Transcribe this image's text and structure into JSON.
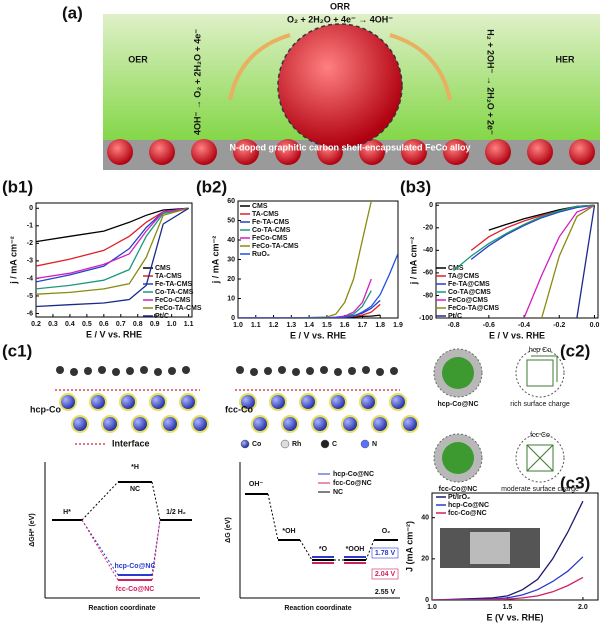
{
  "panel_a": {
    "label": "(a)",
    "orr": "ORR",
    "orr_eq": "O₂ + 2H₂O + 4e⁻ → 4OH⁻",
    "oer": "OER",
    "oer_eq": "4OH⁻ → O₂ + 2H₂O + 4e⁻",
    "her": "HER",
    "her_eq": "H₂ + 2OH⁻ → 2H₂O + 2e⁻",
    "caption": "N-doped graphitic carbon shell-encapsulated FeCo alloy"
  },
  "panel_c1": {
    "label": "(c1)",
    "hcp": "hcp-Co",
    "fcc": "fcc-Co",
    "interface": "Interface",
    "atoms": [
      "Co",
      "Rh",
      "C",
      "N"
    ],
    "her_diagram": {
      "ylabel": "ΔGH* (eV)",
      "start": "H*",
      "intermediate": "*H",
      "nc": "NC",
      "end": "1/2 H₂",
      "hcp": "hcp-Co@NC",
      "fcc": "fcc-Co@NC",
      "xlabel": "Reaction coordinate"
    },
    "oer_diagram": {
      "ylabel": "ΔG (eV)",
      "steps": [
        "OH⁻",
        "*OH",
        "*O",
        "*OOH",
        "O₂"
      ],
      "legend": [
        "hcp-Co@NC",
        "fcc-Co@NC",
        "NC"
      ],
      "potentials": [
        "1.78 V",
        "2.04 V",
        "2.55 V"
      ],
      "xlabel": "Reaction coordinate"
    }
  },
  "panel_c2": {
    "label": "(c2)",
    "hcp": "hcp-Co@NC",
    "hcp_lattice": "hcp Co",
    "hcp_note": "rich surface charge",
    "fcc": "fcc-Co@NC",
    "fcc_lattice": "fcc Co",
    "fcc_note": "moderate surface charge"
  },
  "chart_data": [
    {
      "type": "line",
      "label": "(b1)",
      "xlabel": "E / V vs. RHE",
      "ylabel": "j / mA cm⁻²",
      "x": [
        0.2,
        0.4,
        0.6,
        0.75,
        0.85,
        0.95,
        1.1
      ],
      "xlim": [
        0.2,
        1.12
      ],
      "xticks": [
        0.2,
        0.3,
        0.4,
        0.5,
        0.6,
        0.7,
        0.8,
        0.9,
        {
          "value": 1.0,
          "label": "1.0"
        },
        1.1
      ],
      "ylim": [
        -6.2,
        0.3
      ],
      "yticks": [
        0,
        -1,
        -2,
        -3,
        -4,
        -5,
        -6
      ],
      "series": [
        {
          "name": "CMS",
          "color": "#000000",
          "values": [
            -1.9,
            -1.6,
            -1.3,
            -0.8,
            -0.4,
            -0.1,
            0
          ]
        },
        {
          "name": "TA-CMS",
          "color": "#e0202a",
          "values": [
            -3.3,
            -2.9,
            -2.4,
            -1.6,
            -0.8,
            -0.2,
            0
          ]
        },
        {
          "name": "Fe-TA-CMS",
          "color": "#2740c8",
          "values": [
            -4.2,
            -3.8,
            -3.3,
            -2.3,
            -1.1,
            -0.2,
            0
          ]
        },
        {
          "name": "Co-TA-CMS",
          "color": "#1a9a7a",
          "values": [
            -4.6,
            -4.4,
            -4.1,
            -3.5,
            -1.6,
            -0.3,
            0
          ]
        },
        {
          "name": "FeCo-CMS",
          "color": "#d020c0",
          "values": [
            -4.0,
            -3.7,
            -3.2,
            -2.6,
            -1.3,
            -0.2,
            0
          ]
        },
        {
          "name": "FeCo-TA-CMS",
          "color": "#8a8a10",
          "values": [
            -4.9,
            -4.8,
            -4.6,
            -4.3,
            -2.8,
            -0.4,
            0
          ]
        },
        {
          "name": "Pt/C",
          "color": "#1a2a8a",
          "values": [
            -5.6,
            -5.5,
            -5.4,
            -5.2,
            -4.4,
            -0.9,
            0
          ]
        }
      ]
    },
    {
      "type": "line",
      "label": "(b2)",
      "xlabel": "E / V vs. RHE",
      "ylabel": "j / mA cm⁻²",
      "x": [
        1.0,
        1.3,
        1.5,
        1.55,
        1.6,
        1.65,
        1.7,
        1.75,
        1.8,
        1.85,
        1.9
      ],
      "xlim": [
        1.0,
        1.9
      ],
      "xticks": [
        {
          "value": 1.0,
          "label": "1.0"
        },
        1.1,
        1.2,
        1.3,
        1.4,
        1.5,
        1.6,
        1.7,
        1.8,
        1.9
      ],
      "ylim": [
        0,
        60
      ],
      "yticks": [
        0,
        10,
        20,
        30,
        40,
        50,
        60
      ],
      "series": [
        {
          "name": "CMS",
          "color": "#000000",
          "values": [
            0,
            0,
            0.1,
            0.2,
            0.3,
            0.5,
            0.8,
            1,
            1.5,
            null,
            null
          ]
        },
        {
          "name": "TA-CMS",
          "color": "#e0202a",
          "values": [
            0,
            0,
            0.1,
            0.2,
            0.4,
            0.8,
            1.5,
            3,
            7,
            null,
            null
          ]
        },
        {
          "name": "Fe-TA-CMS",
          "color": "#2740c8",
          "values": [
            0,
            0,
            0.1,
            0.3,
            0.6,
            1.2,
            2.5,
            5,
            9,
            null,
            null
          ]
        },
        {
          "name": "Co-TA-CMS",
          "color": "#1a9a7a",
          "values": [
            0,
            0,
            0.1,
            0.3,
            0.8,
            2,
            6,
            14,
            null,
            null,
            null
          ]
        },
        {
          "name": "FeCo-CMS",
          "color": "#d020c0",
          "values": [
            0,
            0,
            0.1,
            0.4,
            1,
            3,
            8,
            20,
            null,
            null,
            null
          ]
        },
        {
          "name": "FeCo-TA-CMS",
          "color": "#8a8a10",
          "values": [
            0,
            0,
            0.5,
            2,
            8,
            20,
            40,
            60,
            null,
            null,
            null
          ]
        },
        {
          "name": "RuO₂",
          "color": "#2050e0",
          "values": [
            0,
            0,
            0.1,
            0.2,
            0.5,
            1,
            3,
            6,
            12,
            22,
            33
          ]
        }
      ]
    },
    {
      "type": "line",
      "label": "(b3)",
      "xlabel": "E / V vs. RHE",
      "ylabel": "j / mA cm⁻²",
      "x": [
        -0.8,
        -0.7,
        -0.6,
        -0.5,
        -0.4,
        -0.3,
        -0.2,
        -0.1,
        0
      ],
      "xlim": [
        -0.9,
        0.02
      ],
      "xticks": [
        -0.8,
        -0.6,
        -0.4,
        -0.2,
        {
          "value": 0,
          "label": "0.0"
        }
      ],
      "ylim": [
        -100,
        2
      ],
      "yticks": [
        0,
        -20,
        -40,
        -60,
        -80,
        -100
      ],
      "series": [
        {
          "name": "CMS",
          "color": "#000000",
          "values": [
            null,
            null,
            -22,
            -17,
            -12,
            -8,
            -4,
            -1,
            0
          ]
        },
        {
          "name": "TA@CMS",
          "color": "#e0202a",
          "values": [
            null,
            -40,
            -28,
            -20,
            -14,
            -9,
            -5,
            -1,
            0
          ]
        },
        {
          "name": "Fe-TA@CMS",
          "color": "#2740c8",
          "values": [
            null,
            -48,
            -36,
            -26,
            -18,
            -11,
            -6,
            -2,
            0
          ]
        },
        {
          "name": "Co-TA@CMS",
          "color": "#1a9a7a",
          "values": [
            -58,
            -45,
            -34,
            -25,
            -17,
            -10,
            -5,
            -1,
            0
          ]
        },
        {
          "name": "FeCo@CMS",
          "color": "#d020c0",
          "values": [
            null,
            null,
            null,
            null,
            -100,
            -62,
            -28,
            -6,
            0
          ]
        },
        {
          "name": "FeCo-TA@CMS",
          "color": "#8a8a10",
          "values": [
            null,
            null,
            null,
            null,
            null,
            -100,
            -45,
            -10,
            0
          ]
        },
        {
          "name": "Pt/C",
          "color": "#1a2a8a",
          "values": [
            null,
            null,
            null,
            null,
            null,
            null,
            null,
            -100,
            0
          ]
        }
      ]
    },
    {
      "type": "line",
      "label": "(c3)",
      "xlabel": "E (V vs. RHE)",
      "ylabel": "J (mA cm⁻²)",
      "x": [
        1.0,
        1.2,
        1.4,
        1.5,
        1.6,
        1.7,
        1.8,
        1.9,
        2.0
      ],
      "xlim": [
        1.0,
        2.1
      ],
      "xticks": [
        {
          "value": 1.0,
          "label": "1.0"
        },
        1.5,
        {
          "value": 2.0,
          "label": "2.0"
        }
      ],
      "ylim": [
        0,
        52
      ],
      "yticks": [
        0,
        20,
        40
      ],
      "series": [
        {
          "name": "Pt/IrO₂",
          "color": "#1a1a6a",
          "values": [
            0,
            0.5,
            1,
            2,
            5,
            10,
            20,
            33,
            48
          ]
        },
        {
          "name": "hcp-Co@NC",
          "color": "#2a3ad0",
          "values": [
            0,
            0.2,
            0.5,
            1,
            2.5,
            5,
            9,
            14,
            21
          ]
        },
        {
          "name": "fcc-Co@NC",
          "color": "#d02060",
          "values": [
            0,
            0,
            0.2,
            0.4,
            1,
            2,
            4,
            7,
            11
          ]
        }
      ]
    }
  ]
}
